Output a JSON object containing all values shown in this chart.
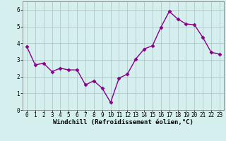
{
  "x": [
    0,
    1,
    2,
    3,
    4,
    5,
    6,
    7,
    8,
    9,
    10,
    11,
    12,
    13,
    14,
    15,
    16,
    17,
    18,
    19,
    20,
    21,
    22,
    23
  ],
  "y": [
    3.8,
    2.7,
    2.8,
    2.3,
    2.5,
    2.4,
    2.4,
    1.5,
    1.75,
    1.3,
    0.45,
    1.9,
    2.15,
    3.05,
    3.65,
    3.85,
    4.95,
    5.9,
    5.45,
    5.15,
    5.1,
    4.35,
    3.45,
    3.35
  ],
  "line_color": "#880088",
  "marker": "D",
  "marker_size": 2.5,
  "linewidth": 1.0,
  "bg_color": "#d5eeee",
  "grid_color": "#b0c8c8",
  "xlabel": "Windchill (Refroidissement éolien,°C)",
  "xlabel_fontsize": 6.5,
  "ylim": [
    0,
    6.5
  ],
  "xlim": [
    -0.5,
    23.5
  ],
  "yticks": [
    0,
    1,
    2,
    3,
    4,
    5,
    6
  ],
  "xticks": [
    0,
    1,
    2,
    3,
    4,
    5,
    6,
    7,
    8,
    9,
    10,
    11,
    12,
    13,
    14,
    15,
    16,
    17,
    18,
    19,
    20,
    21,
    22,
    23
  ],
  "tick_fontsize": 5.5
}
